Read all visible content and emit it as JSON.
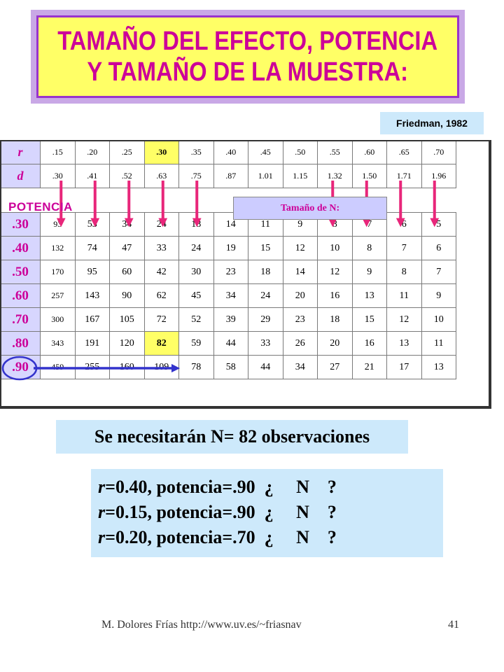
{
  "title": {
    "line1": "TAMAÑO DEL EFECTO, POTENCIA",
    "line2": "Y TAMAÑO DE LA MUESTRA:"
  },
  "citation": "Friedman, 1982",
  "table": {
    "r_label": "r",
    "d_label": "d",
    "r_values": [
      ".15",
      ".20",
      ".25",
      ".30",
      ".35",
      ".40",
      ".45",
      ".50",
      ".55",
      ".60",
      ".65",
      ".70"
    ],
    "d_values": [
      ".30",
      ".41",
      ".52",
      ".63",
      ".75",
      ".87",
      "1.01",
      "1.15",
      "1.32",
      "1.50",
      "1.71",
      "1.96"
    ],
    "potencia_label": "POTENCIA",
    "sample_size_label": "Tamaño de N:",
    "rows": [
      {
        "power": ".30",
        "values": [
          "93",
          "53",
          "34",
          "24",
          "18",
          "14",
          "11",
          "9",
          "8",
          "7",
          "6",
          "5"
        ]
      },
      {
        "power": ".40",
        "values": [
          "132",
          "74",
          "47",
          "33",
          "24",
          "19",
          "15",
          "12",
          "10",
          "8",
          "7",
          "6"
        ]
      },
      {
        "power": ".50",
        "values": [
          "170",
          "95",
          "60",
          "42",
          "30",
          "23",
          "18",
          "14",
          "12",
          "9",
          "8",
          "7"
        ]
      },
      {
        "power": ".60",
        "values": [
          "257",
          "143",
          "90",
          "62",
          "45",
          "34",
          "24",
          "20",
          "16",
          "13",
          "11",
          "9"
        ]
      },
      {
        "power": ".70",
        "values": [
          "300",
          "167",
          "105",
          "72",
          "52",
          "39",
          "29",
          "23",
          "18",
          "15",
          "12",
          "10"
        ]
      },
      {
        "power": ".80",
        "values": [
          "343",
          "191",
          "120",
          "82",
          "59",
          "44",
          "33",
          "26",
          "20",
          "16",
          "13",
          "11"
        ]
      },
      {
        "power": ".90",
        "values": [
          "459",
          "255",
          "160",
          "109",
          "78",
          "58",
          "44",
          "34",
          "27",
          "21",
          "17",
          "13"
        ]
      }
    ]
  },
  "result": "Se necesitarán N= 82 observaciones",
  "questions": [
    {
      "var": "r",
      "rest": "=0.40, potencia=.90  ¿     N    ?"
    },
    {
      "var": "r",
      "rest": "=0.15, potencia=.90  ¿     N    ?"
    },
    {
      "var": "r",
      "rest": "=0.20, potencia=.70  ¿     N    ?"
    }
  ],
  "footer": "M. Dolores Frías http://www.uv.es/~friasnav",
  "page_number": "41",
  "colors": {
    "title_text": "#cc0099",
    "title_bg": "#ffff66",
    "row_header_bg": "#d7d6fe",
    "highlight_bg": "#ffff66",
    "arrow": "#e8267a",
    "selection_arrow": "#3333cc",
    "note_bg": "#cde9fb"
  }
}
